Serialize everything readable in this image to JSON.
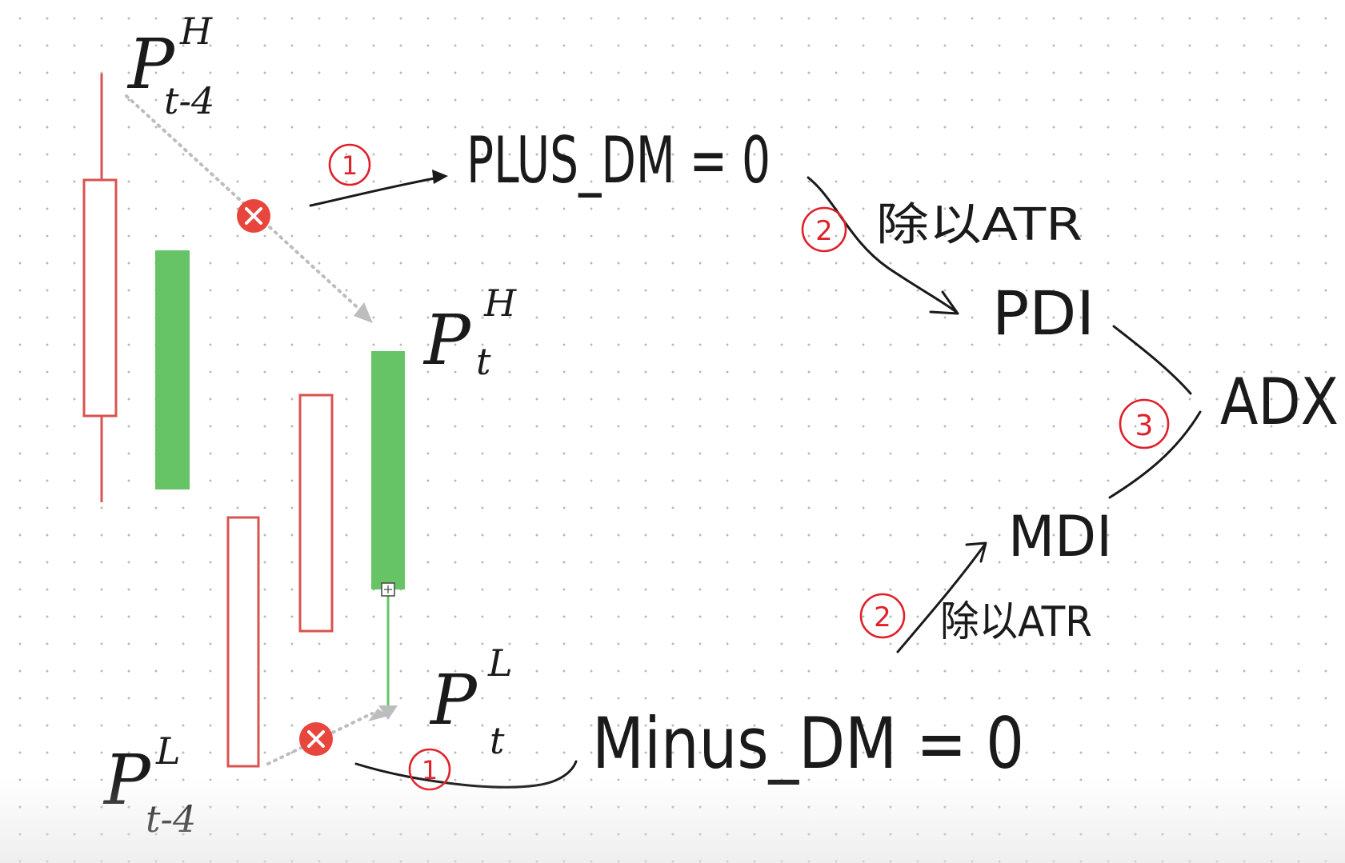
{
  "labels": {
    "p_h_prev": {
      "base": "P",
      "sup": "H",
      "sub": "t-4"
    },
    "p_h_curr": {
      "base": "P",
      "sup": "H",
      "sub": "t"
    },
    "p_l_curr": {
      "base": "P",
      "sup": "L",
      "sub": "t"
    },
    "p_l_prev": {
      "base": "P",
      "sup": "L",
      "sub": "t-4"
    },
    "plus_dm": "PLUS_DM = 0",
    "minus_dm": "Minus_DM = 0",
    "pdi": "PDI",
    "mdi": "MDI",
    "adx": "ADX",
    "divide_atr_top": "除以ATR",
    "divide_atr_bottom": "除以ATR"
  },
  "steps": {
    "plus_step": "1",
    "minus_step": "1",
    "pdi_step": "2",
    "mdi_step": "2",
    "adx_step": "3"
  },
  "colors": {
    "candle_up_outline": "#d9534f",
    "candle_down_fill": "#66c466",
    "step_red": "#e0202a",
    "ink": "#1a1a1a",
    "cross_badge": "#e8453c",
    "dotted_arrow": "#bdbdbd"
  }
}
